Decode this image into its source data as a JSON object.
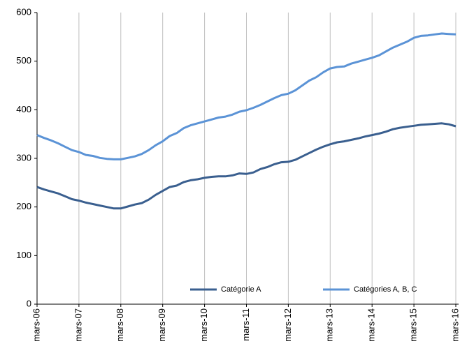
{
  "chart_data": {
    "type": "line",
    "categories": [
      "mars-06",
      null,
      null,
      null,
      null,
      null,
      "mars-07",
      null,
      null,
      null,
      null,
      null,
      "mars-08",
      null,
      null,
      null,
      null,
      null,
      "mars-09",
      null,
      null,
      null,
      null,
      null,
      "mars-10",
      null,
      null,
      null,
      null,
      null,
      "mars-11",
      null,
      null,
      null,
      null,
      null,
      "mars-12",
      null,
      null,
      null,
      null,
      null,
      "mars-13",
      null,
      null,
      null,
      null,
      null,
      "mars-14",
      null,
      null,
      null,
      null,
      null,
      "mars-15",
      null,
      null,
      null,
      null,
      null,
      "mars-16"
    ],
    "series": [
      {
        "name": "Catégorie A",
        "color": "#3a5f8f",
        "values": [
          241,
          236,
          232,
          228,
          222,
          216,
          213,
          209,
          206,
          203,
          200,
          197,
          197,
          201,
          205,
          208,
          215,
          225,
          233,
          241,
          244,
          251,
          255,
          257,
          260,
          262,
          263,
          263,
          265,
          269,
          268,
          271,
          278,
          282,
          288,
          292,
          293,
          297,
          304,
          311,
          318,
          324,
          329,
          333,
          335,
          338,
          341,
          345,
          348,
          351,
          355,
          360,
          363,
          365,
          367,
          369,
          370,
          371,
          372,
          370,
          366
        ]
      },
      {
        "name": "Catégories A, B, C",
        "color": "#5b93d6",
        "values": [
          348,
          342,
          337,
          331,
          324,
          317,
          313,
          307,
          305,
          301,
          299,
          298,
          298,
          301,
          304,
          309,
          317,
          327,
          335,
          346,
          352,
          362,
          368,
          372,
          376,
          380,
          384,
          386,
          390,
          396,
          399,
          404,
          410,
          417,
          424,
          430,
          433,
          440,
          450,
          460,
          467,
          477,
          485,
          488,
          489,
          495,
          499,
          503,
          507,
          512,
          520,
          528,
          534,
          540,
          548,
          552,
          553,
          555,
          557,
          556,
          555
        ]
      }
    ],
    "ylim": [
      0,
      600
    ],
    "yticks": [
      0,
      100,
      200,
      300,
      400,
      500,
      600
    ],
    "grid": "x",
    "legend": "bottom"
  }
}
